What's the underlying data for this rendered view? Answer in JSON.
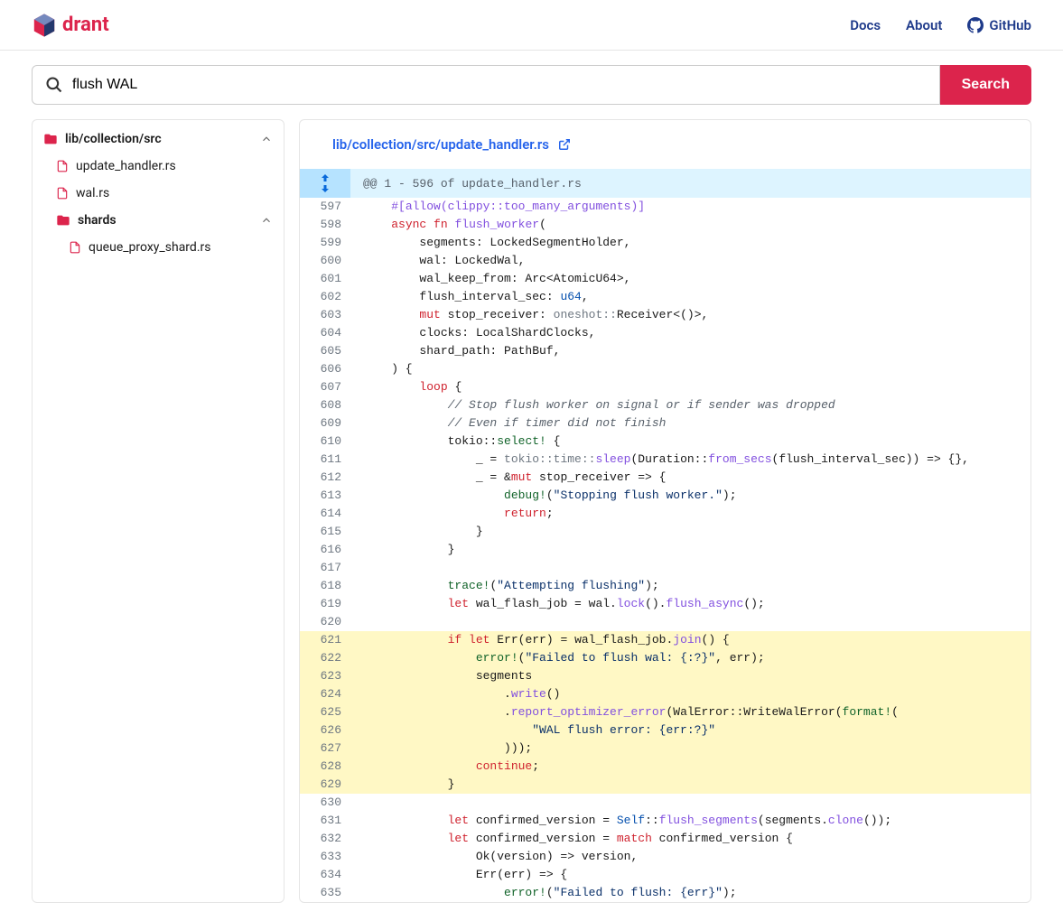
{
  "brand": {
    "name": "drant",
    "color": "#dc244c"
  },
  "nav": {
    "docs": "Docs",
    "about": "About",
    "github": "GitHub"
  },
  "search": {
    "value": "flush WAL",
    "button": "Search"
  },
  "sidebar": {
    "root": "lib/collection/src",
    "files": [
      {
        "name": "update_handler.rs"
      },
      {
        "name": "wal.rs"
      }
    ],
    "subfolder": "shards",
    "subfiles": [
      {
        "name": "queue_proxy_shard.rs"
      }
    ]
  },
  "file": {
    "path": "lib/collection/src/update_handler.rs",
    "hunk": "@@ 1 - 596 of update_handler.rs"
  },
  "code": {
    "lines": [
      {
        "n": 597,
        "hl": false,
        "html": "    <span class='tok-attr'>#[allow(clippy::too_many_arguments)]</span>"
      },
      {
        "n": 598,
        "hl": false,
        "html": "    <span class='tok-kw'>async</span> <span class='tok-kw'>fn</span> <span class='tok-fn'>flush_worker</span>("
      },
      {
        "n": 599,
        "hl": false,
        "html": "        segments: LockedSegmentHolder,"
      },
      {
        "n": 600,
        "hl": false,
        "html": "        wal: LockedWal,"
      },
      {
        "n": 601,
        "hl": false,
        "html": "        wal_keep_from: Arc&lt;AtomicU64&gt;,"
      },
      {
        "n": 602,
        "hl": false,
        "html": "        flush_interval_sec: <span class='tok-type'>u64</span>,"
      },
      {
        "n": 603,
        "hl": false,
        "html": "        <span class='tok-kw'>mut</span> stop_receiver: <span class='tok-ns'>oneshot::</span>Receiver&lt;()&gt;,"
      },
      {
        "n": 604,
        "hl": false,
        "html": "        clocks: LocalShardClocks,"
      },
      {
        "n": 605,
        "hl": false,
        "html": "        shard_path: PathBuf,"
      },
      {
        "n": 606,
        "hl": false,
        "html": "    ) {"
      },
      {
        "n": 607,
        "hl": false,
        "html": "        <span class='tok-kw'>loop</span> {"
      },
      {
        "n": 608,
        "hl": false,
        "html": "            <span class='tok-comment'>// Stop flush worker on signal or if sender was dropped</span>"
      },
      {
        "n": 609,
        "hl": false,
        "html": "            <span class='tok-comment'>// Even if timer did not finish</span>"
      },
      {
        "n": 610,
        "hl": false,
        "html": "            tokio::<span class='tok-macro'>select!</span> {"
      },
      {
        "n": 611,
        "hl": false,
        "html": "                _ = <span class='tok-ns'>tokio::time::</span><span class='tok-call'>sleep</span>(Duration::<span class='tok-call'>from_secs</span>(flush_interval_sec)) =&gt; {},"
      },
      {
        "n": 612,
        "hl": false,
        "html": "                _ = &amp;<span class='tok-kw'>mut</span> stop_receiver =&gt; {"
      },
      {
        "n": 613,
        "hl": false,
        "html": "                    <span class='tok-macro'>debug!</span>(<span class='tok-str'>\"Stopping flush worker.\"</span>);"
      },
      {
        "n": 614,
        "hl": false,
        "html": "                    <span class='tok-kw'>return</span>;"
      },
      {
        "n": 615,
        "hl": false,
        "html": "                }"
      },
      {
        "n": 616,
        "hl": false,
        "html": "            }"
      },
      {
        "n": 617,
        "hl": false,
        "html": ""
      },
      {
        "n": 618,
        "hl": false,
        "html": "            <span class='tok-macro'>trace!</span>(<span class='tok-str'>\"Attempting flushing\"</span>);"
      },
      {
        "n": 619,
        "hl": false,
        "html": "            <span class='tok-kw'>let</span> wal_flash_job = wal.<span class='tok-call'>lock</span>().<span class='tok-call'>flush_async</span>();"
      },
      {
        "n": 620,
        "hl": false,
        "html": ""
      },
      {
        "n": 621,
        "hl": true,
        "html": "            <span class='tok-kw'>if</span> <span class='tok-kw'>let</span> Err(err) = wal_flash_job.<span class='tok-call'>join</span>() {"
      },
      {
        "n": 622,
        "hl": true,
        "html": "                <span class='tok-macro'>error!</span>(<span class='tok-str'>\"Failed to flush wal: {:?}\"</span>, err);"
      },
      {
        "n": 623,
        "hl": true,
        "html": "                segments"
      },
      {
        "n": 624,
        "hl": true,
        "html": "                    .<span class='tok-call'>write</span>()"
      },
      {
        "n": 625,
        "hl": true,
        "html": "                    .<span class='tok-call'>report_optimizer_error</span>(WalError::WriteWalError(<span class='tok-macro'>format!</span>("
      },
      {
        "n": 626,
        "hl": true,
        "html": "                        <span class='tok-str'>\"WAL flush error: {err:?}\"</span>"
      },
      {
        "n": 627,
        "hl": true,
        "html": "                    )));"
      },
      {
        "n": 628,
        "hl": true,
        "html": "                <span class='tok-kw'>continue</span>;"
      },
      {
        "n": 629,
        "hl": true,
        "html": "            }"
      },
      {
        "n": 630,
        "hl": false,
        "html": ""
      },
      {
        "n": 631,
        "hl": false,
        "html": "            <span class='tok-kw'>let</span> confirmed_version = <span class='tok-type'>Self</span>::<span class='tok-call'>flush_segments</span>(segments.<span class='tok-call'>clone</span>());"
      },
      {
        "n": 632,
        "hl": false,
        "html": "            <span class='tok-kw'>let</span> confirmed_version = <span class='tok-kw'>match</span> confirmed_version {"
      },
      {
        "n": 633,
        "hl": false,
        "html": "                Ok(version) =&gt; version,"
      },
      {
        "n": 634,
        "hl": false,
        "html": "                Err(err) =&gt; {"
      },
      {
        "n": 635,
        "hl": false,
        "html": "                    <span class='tok-macro'>error!</span>(<span class='tok-str'>\"Failed to flush: {err}\"</span>);"
      }
    ]
  },
  "colors": {
    "primary": "#dc244c",
    "link": "#2563eb",
    "hunk_bg": "#ddf4ff",
    "hunk_gutter": "#b6e3ff",
    "highlight": "#fff8c5"
  }
}
